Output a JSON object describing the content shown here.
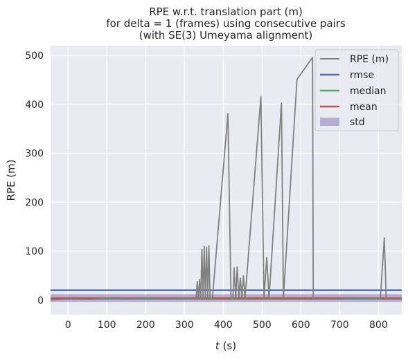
{
  "chart_data": {
    "type": "line",
    "title_lines": [
      "RPE w.r.t. translation part (m)",
      "for delta = 1 (frames) using consecutive pairs",
      "(with SE(3) Umeyama alignment)"
    ],
    "xlabel_italic": "t",
    "xlabel_suffix": " (s)",
    "ylabel": "RPE (m)",
    "xlim": [
      -45,
      860
    ],
    "ylim": [
      -30,
      520
    ],
    "xticks": [
      0,
      100,
      200,
      300,
      400,
      500,
      600,
      700,
      800
    ],
    "yticks": [
      0,
      100,
      200,
      300,
      400,
      500
    ],
    "grid": true,
    "legend_position": "top-right",
    "colors": {
      "background": "#eaeaf2",
      "grid": "#ffffff",
      "rpe": "#808080",
      "rmse": "#4c72b0",
      "median": "#55a868",
      "mean": "#c44e52",
      "std": "#8172b2"
    },
    "series": [
      {
        "name": "RPE (m)",
        "x": [
          -45,
          0,
          50,
          100,
          150,
          200,
          250,
          300,
          330,
          333,
          336,
          339,
          342,
          345,
          348,
          351,
          354,
          357,
          360,
          363,
          366,
          369,
          372,
          412,
          420,
          425,
          428,
          432,
          436,
          440,
          444,
          448,
          452,
          456,
          497,
          505,
          512,
          518,
          550,
          555,
          590,
          630,
          632,
          700,
          750,
          800,
          805,
          815,
          820,
          860
        ],
        "values": [
          0,
          2,
          1,
          3,
          2,
          3,
          2,
          3,
          2,
          38,
          3,
          42,
          2,
          104,
          4,
          110,
          3,
          108,
          5,
          111,
          2,
          3,
          3,
          381,
          3,
          5,
          66,
          4,
          68,
          6,
          45,
          5,
          50,
          3,
          416,
          3,
          87,
          4,
          403,
          4,
          451,
          496,
          2,
          2,
          3,
          3,
          5,
          127,
          2,
          2
        ]
      }
    ],
    "reference_lines": [
      {
        "name": "rmse",
        "value": 20
      },
      {
        "name": "median",
        "value": 2
      },
      {
        "name": "mean",
        "value": 4
      }
    ],
    "std_band": {
      "name": "std",
      "low": -4,
      "high": 12
    },
    "legend": [
      "RPE (m)",
      "rmse",
      "median",
      "mean",
      "std"
    ]
  }
}
